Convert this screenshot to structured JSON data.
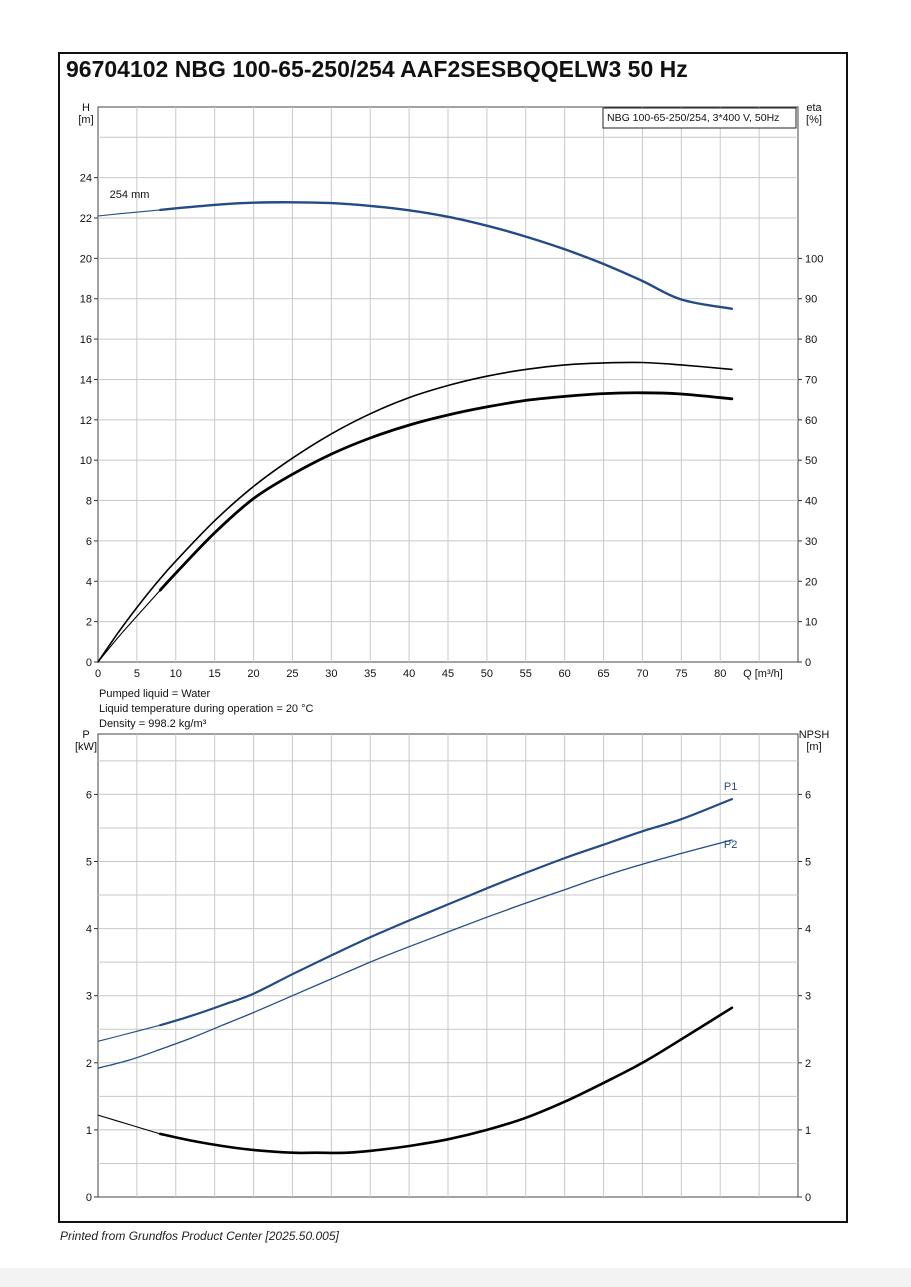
{
  "page": {
    "title": "96704102 NBG 100-65-250/254 AAF2SESBQQELW3 50 Hz",
    "footer": "Printed from Grundfos Product Center [2025.50.005]",
    "info_lines": [
      "Pumped liquid = Water",
      "Liquid temperature during operation = 20 °C",
      "Density = 998.2 kg/m³"
    ]
  },
  "colors": {
    "blue": "#234c87",
    "black": "#000000",
    "grid": "#c8c8c8"
  },
  "chart_data": [
    {
      "type": "line",
      "legend_box": "NBG 100-65-250/254, 3*400 V, 50Hz",
      "legend_placement": "top-right",
      "grid": true,
      "x_axis": {
        "label": "Q [m³/h]",
        "range": [
          0,
          90
        ],
        "ticks": [
          0,
          5,
          10,
          15,
          20,
          25,
          30,
          35,
          40,
          45,
          50,
          55,
          60,
          65,
          70,
          75,
          80
        ]
      },
      "y_left": {
        "label_top": "H",
        "label_bottom": "[m]",
        "range": [
          0,
          27.5
        ],
        "ticks": [
          0,
          2,
          4,
          6,
          8,
          10,
          12,
          14,
          16,
          18,
          20,
          22,
          24
        ]
      },
      "y_right": {
        "label_top": "eta",
        "label_bottom": "[%]",
        "range": [
          0,
          137.5
        ],
        "ticks": [
          0,
          10,
          20,
          30,
          40,
          50,
          60,
          70,
          80,
          90,
          100
        ]
      },
      "series": [
        {
          "name": "254 mm",
          "axis": "left",
          "color": "#234c87",
          "width": 2.4,
          "lead_in": [
            [
              0,
              22.1
            ],
            [
              3,
              22.22
            ],
            [
              8,
              22.4
            ]
          ],
          "x": [
            8,
            12,
            16,
            20,
            25,
            30,
            35,
            40,
            45,
            50,
            55,
            60,
            65,
            70,
            75,
            81.5
          ],
          "y": [
            22.4,
            22.55,
            22.68,
            22.76,
            22.78,
            22.74,
            22.6,
            22.38,
            22.06,
            21.62,
            21.08,
            20.45,
            19.72,
            18.88,
            17.96,
            17.5
          ]
        },
        {
          "axis": "right",
          "color": "#000000",
          "width": 1.6,
          "x": [
            0,
            2.5,
            5,
            7.5,
            10,
            15,
            20,
            25,
            30,
            35,
            40,
            45,
            50,
            55,
            60,
            65,
            70,
            75,
            81.5
          ],
          "y": [
            0,
            7,
            13.5,
            19.5,
            25,
            35,
            43.5,
            50.5,
            56.5,
            61.5,
            65.5,
            68.5,
            70.8,
            72.5,
            73.6,
            74.1,
            74.2,
            73.6,
            72.5
          ]
        },
        {
          "axis": "right",
          "color": "#000000",
          "width": 2.8,
          "lead_in": [
            [
              0,
              0
            ],
            [
              3,
              7
            ],
            [
              8,
              17.8
            ]
          ],
          "x": [
            8,
            10,
            15,
            20,
            25,
            30,
            35,
            40,
            45,
            50,
            55,
            60,
            65,
            70,
            75,
            81.5
          ],
          "y": [
            17.8,
            22,
            32,
            40.5,
            46.5,
            51.5,
            55.5,
            58.7,
            61.2,
            63.2,
            64.8,
            65.8,
            66.5,
            66.7,
            66.4,
            65.2
          ]
        }
      ]
    },
    {
      "type": "line",
      "grid": true,
      "x_axis": {
        "range": [
          0,
          90
        ],
        "ticks": [
          0,
          5,
          10,
          15,
          20,
          25,
          30,
          35,
          40,
          45,
          50,
          55,
          60,
          65,
          70,
          75,
          80
        ]
      },
      "y_left": {
        "label_top": "P",
        "label_bottom": "[kW]",
        "range": [
          0,
          6.9
        ],
        "ticks": [
          0,
          1,
          2,
          3,
          4,
          5,
          6
        ]
      },
      "y_right": {
        "label_top": "NPSH",
        "label_bottom": "[m]",
        "range": [
          0,
          6.9
        ],
        "ticks": [
          0,
          1,
          2,
          3,
          4,
          5,
          6
        ]
      },
      "series": [
        {
          "name": "P1",
          "axis": "left",
          "color": "#234c87",
          "width": 2.2,
          "lead_in": [
            [
              0,
              2.32
            ],
            [
              4,
              2.44
            ],
            [
              8,
              2.56
            ]
          ],
          "x": [
            8,
            12,
            16,
            20,
            25,
            30,
            35,
            40,
            45,
            50,
            55,
            60,
            65,
            70,
            75,
            81.5
          ],
          "y": [
            2.56,
            2.7,
            2.86,
            3.03,
            3.32,
            3.6,
            3.87,
            4.12,
            4.36,
            4.6,
            4.83,
            5.05,
            5.25,
            5.45,
            5.63,
            5.93
          ]
        },
        {
          "name": "P2",
          "axis": "left",
          "color": "#234c87",
          "width": 1.3,
          "x": [
            0,
            4,
            8,
            12,
            16,
            20,
            25,
            30,
            35,
            40,
            45,
            50,
            55,
            60,
            65,
            70,
            75,
            81.5
          ],
          "y": [
            1.92,
            2.04,
            2.2,
            2.37,
            2.56,
            2.75,
            3.0,
            3.25,
            3.5,
            3.73,
            3.95,
            4.17,
            4.38,
            4.58,
            4.78,
            4.96,
            5.12,
            5.32
          ]
        },
        {
          "axis": "right",
          "color": "#000000",
          "width": 2.6,
          "lead_in": [
            [
              0,
              1.22
            ],
            [
              4,
              1.08
            ],
            [
              8,
              0.94
            ]
          ],
          "x": [
            8,
            12,
            16,
            20,
            25,
            28,
            32,
            36,
            40,
            45,
            50,
            55,
            60,
            65,
            70,
            75,
            81.5
          ],
          "y": [
            0.94,
            0.84,
            0.76,
            0.7,
            0.66,
            0.66,
            0.66,
            0.7,
            0.76,
            0.86,
            1.0,
            1.18,
            1.42,
            1.7,
            2.0,
            2.35,
            2.82
          ]
        }
      ]
    }
  ]
}
